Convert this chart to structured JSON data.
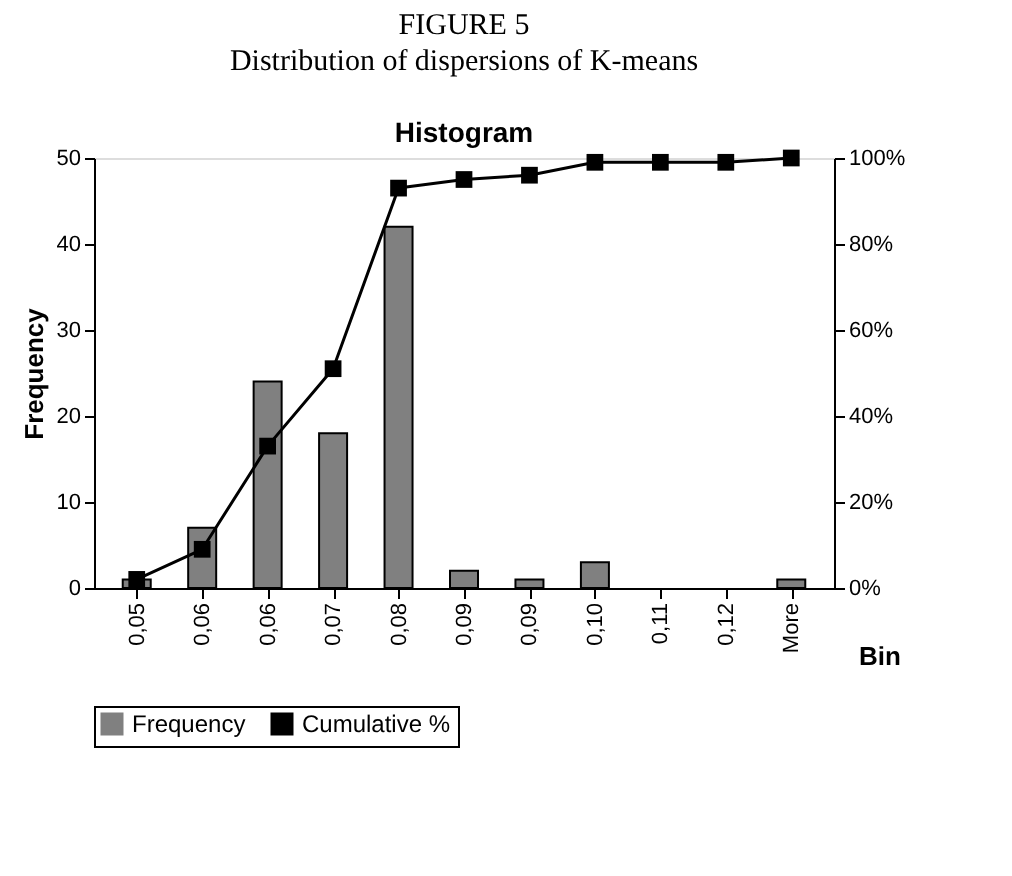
{
  "chart_data": {
    "type": "bar",
    "title": "FIGURE 5",
    "subtitle": "Distribution of dispersions of K-means",
    "annotations": [
      "Histogram"
    ],
    "xlabel": "Bin",
    "ylabel": "Frequency",
    "categories": [
      "0,05",
      "0,06",
      "0,06",
      "0,07",
      "0,08",
      "0,09",
      "0,09",
      "0,10",
      "0,11",
      "0,12",
      "More"
    ],
    "series": [
      {
        "name": "Frequency",
        "color": "#808080",
        "values": [
          1,
          7,
          24,
          18,
          42,
          2,
          1,
          3,
          0,
          0,
          1
        ]
      },
      {
        "name": "Cumulative %",
        "type": "line",
        "axis": "y2",
        "color": "#000000",
        "marker": "square",
        "values": [
          2,
          9,
          33,
          51,
          93,
          95,
          96,
          99,
          99,
          99,
          100
        ]
      }
    ],
    "ylim": [
      0,
      50
    ],
    "yticks": [
      0,
      10,
      20,
      30,
      40,
      50
    ],
    "y2lim": [
      0,
      100
    ],
    "y2ticks": [
      {
        "value": 0,
        "label": "0%"
      },
      {
        "value": 20,
        "label": "20%"
      },
      {
        "value": 40,
        "label": "40%"
      },
      {
        "value": 60,
        "label": "60%"
      },
      {
        "value": 80,
        "label": "80%"
      },
      {
        "value": 100,
        "label": "100%"
      }
    ],
    "legend": "bottom",
    "grid": false
  }
}
